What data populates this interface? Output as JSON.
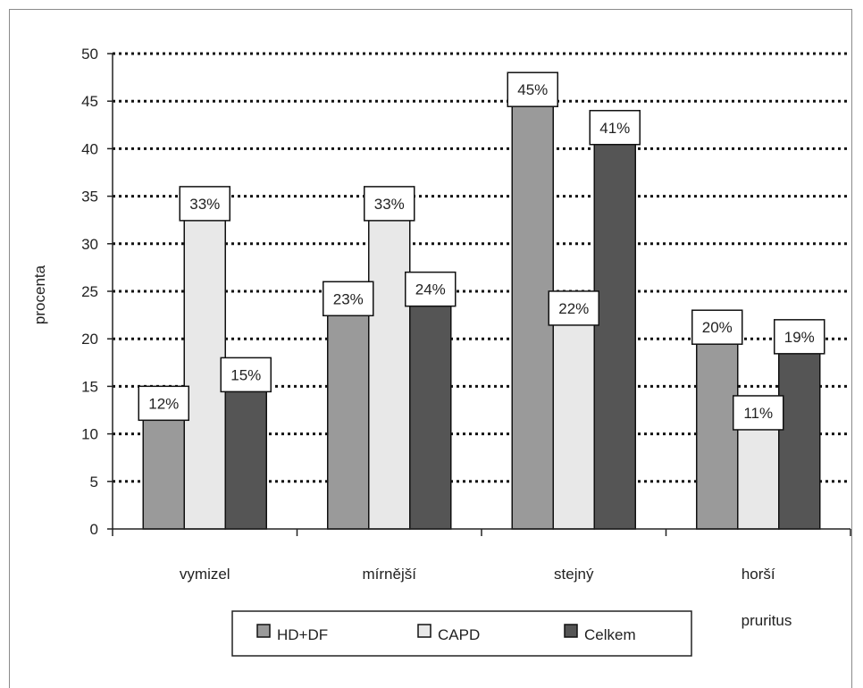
{
  "chart_data": {
    "type": "bar",
    "categories": [
      "vymizel",
      "mírnější",
      "stejný",
      "horší"
    ],
    "series": [
      {
        "name": "HD+DF",
        "values": [
          12,
          23,
          45,
          20
        ],
        "labels": [
          "12%",
          "23%",
          "45%",
          "20%"
        ],
        "color": "#9a9a9a"
      },
      {
        "name": "CAPD",
        "values": [
          33,
          33,
          22,
          11
        ],
        "labels": [
          "33%",
          "33%",
          "22%",
          "11%"
        ],
        "color": "#e8e8e8"
      },
      {
        "name": "Celkem",
        "values": [
          15,
          24,
          41,
          19
        ],
        "labels": [
          "15%",
          "24%",
          "41%",
          "19%"
        ],
        "color": "#555555"
      }
    ],
    "ylabel": "procenta",
    "xlabel": "pruritus",
    "ylim": [
      0,
      50
    ],
    "yticks": [
      0,
      5,
      10,
      15,
      20,
      25,
      30,
      35,
      40,
      45,
      50
    ],
    "grid": "dotted-horizontal",
    "legend_position": "bottom"
  }
}
